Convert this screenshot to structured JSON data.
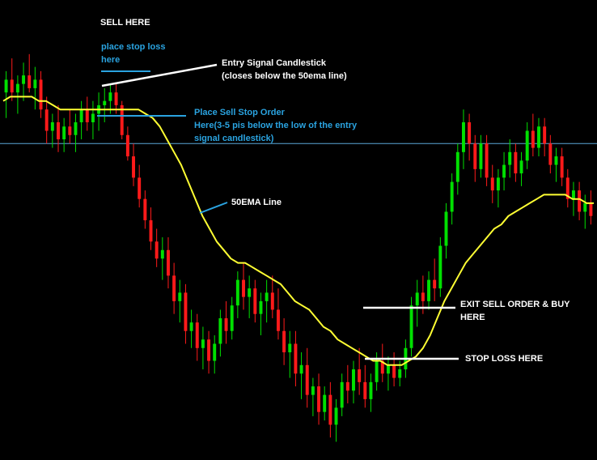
{
  "chart_data": {
    "type": "candlestick",
    "title": "",
    "colors": {
      "background": "#000000",
      "bull": "#00e000",
      "bear": "#ff1a1a",
      "ema": "#ffff33",
      "level_line": "#5aa8d8",
      "white_marker": "#ffffff",
      "blue_marker": "#2aa3e0"
    },
    "ylim": [
      0,
      100
    ],
    "candles": [
      {
        "o": 84,
        "h": 89,
        "l": 78,
        "c": 87
      },
      {
        "o": 87,
        "h": 92,
        "l": 82,
        "c": 84
      },
      {
        "o": 84,
        "h": 88,
        "l": 79,
        "c": 86
      },
      {
        "o": 86,
        "h": 91,
        "l": 82,
        "c": 88
      },
      {
        "o": 88,
        "h": 93,
        "l": 84,
        "c": 85
      },
      {
        "o": 85,
        "h": 90,
        "l": 80,
        "c": 87
      },
      {
        "o": 87,
        "h": 89,
        "l": 78,
        "c": 80
      },
      {
        "o": 80,
        "h": 83,
        "l": 72,
        "c": 75
      },
      {
        "o": 75,
        "h": 79,
        "l": 71,
        "c": 77
      },
      {
        "o": 77,
        "h": 81,
        "l": 70,
        "c": 73
      },
      {
        "o": 73,
        "h": 78,
        "l": 70,
        "c": 76
      },
      {
        "o": 76,
        "h": 80,
        "l": 72,
        "c": 74
      },
      {
        "o": 74,
        "h": 79,
        "l": 70,
        "c": 77
      },
      {
        "o": 77,
        "h": 82,
        "l": 73,
        "c": 80
      },
      {
        "o": 80,
        "h": 83,
        "l": 75,
        "c": 77
      },
      {
        "o": 77,
        "h": 82,
        "l": 73,
        "c": 79
      },
      {
        "o": 79,
        "h": 84,
        "l": 75,
        "c": 81
      },
      {
        "o": 81,
        "h": 85,
        "l": 77,
        "c": 82
      },
      {
        "o": 82,
        "h": 86,
        "l": 79,
        "c": 84
      },
      {
        "o": 84,
        "h": 86,
        "l": 79,
        "c": 81
      },
      {
        "o": 81,
        "h": 82,
        "l": 73,
        "c": 74
      },
      {
        "o": 74,
        "h": 76,
        "l": 68,
        "c": 69
      },
      {
        "o": 69,
        "h": 72,
        "l": 62,
        "c": 64
      },
      {
        "o": 64,
        "h": 67,
        "l": 57,
        "c": 59
      },
      {
        "o": 59,
        "h": 61,
        "l": 52,
        "c": 54
      },
      {
        "o": 54,
        "h": 57,
        "l": 47,
        "c": 49
      },
      {
        "o": 49,
        "h": 52,
        "l": 43,
        "c": 45
      },
      {
        "o": 45,
        "h": 50,
        "l": 40,
        "c": 47
      },
      {
        "o": 47,
        "h": 50,
        "l": 38,
        "c": 41
      },
      {
        "o": 41,
        "h": 44,
        "l": 32,
        "c": 35
      },
      {
        "o": 35,
        "h": 40,
        "l": 30,
        "c": 37
      },
      {
        "o": 37,
        "h": 39,
        "l": 25,
        "c": 28
      },
      {
        "o": 28,
        "h": 33,
        "l": 24,
        "c": 30
      },
      {
        "o": 30,
        "h": 32,
        "l": 21,
        "c": 24
      },
      {
        "o": 24,
        "h": 29,
        "l": 19,
        "c": 26
      },
      {
        "o": 26,
        "h": 28,
        "l": 18,
        "c": 21
      },
      {
        "o": 21,
        "h": 27,
        "l": 18,
        "c": 25
      },
      {
        "o": 25,
        "h": 33,
        "l": 22,
        "c": 31
      },
      {
        "o": 31,
        "h": 35,
        "l": 25,
        "c": 28
      },
      {
        "o": 28,
        "h": 36,
        "l": 26,
        "c": 34
      },
      {
        "o": 34,
        "h": 42,
        "l": 31,
        "c": 40
      },
      {
        "o": 40,
        "h": 44,
        "l": 33,
        "c": 36
      },
      {
        "o": 36,
        "h": 41,
        "l": 31,
        "c": 38
      },
      {
        "o": 38,
        "h": 40,
        "l": 30,
        "c": 32
      },
      {
        "o": 32,
        "h": 37,
        "l": 27,
        "c": 35
      },
      {
        "o": 35,
        "h": 40,
        "l": 30,
        "c": 37
      },
      {
        "o": 37,
        "h": 41,
        "l": 31,
        "c": 33
      },
      {
        "o": 33,
        "h": 38,
        "l": 26,
        "c": 28
      },
      {
        "o": 28,
        "h": 31,
        "l": 20,
        "c": 23
      },
      {
        "o": 23,
        "h": 28,
        "l": 17,
        "c": 25
      },
      {
        "o": 25,
        "h": 28,
        "l": 15,
        "c": 18
      },
      {
        "o": 18,
        "h": 23,
        "l": 12,
        "c": 20
      },
      {
        "o": 20,
        "h": 24,
        "l": 10,
        "c": 13
      },
      {
        "o": 13,
        "h": 17,
        "l": 8,
        "c": 15
      },
      {
        "o": 15,
        "h": 18,
        "l": 6,
        "c": 9
      },
      {
        "o": 9,
        "h": 15,
        "l": 7,
        "c": 13
      },
      {
        "o": 13,
        "h": 16,
        "l": 3,
        "c": 6
      },
      {
        "o": 6,
        "h": 12,
        "l": 2,
        "c": 10
      },
      {
        "o": 10,
        "h": 18,
        "l": 8,
        "c": 16
      },
      {
        "o": 16,
        "h": 20,
        "l": 11,
        "c": 14
      },
      {
        "o": 14,
        "h": 21,
        "l": 11,
        "c": 19
      },
      {
        "o": 19,
        "h": 24,
        "l": 13,
        "c": 16
      },
      {
        "o": 16,
        "h": 20,
        "l": 10,
        "c": 12
      },
      {
        "o": 12,
        "h": 18,
        "l": 9,
        "c": 16
      },
      {
        "o": 16,
        "h": 23,
        "l": 14,
        "c": 21
      },
      {
        "o": 21,
        "h": 25,
        "l": 16,
        "c": 18
      },
      {
        "o": 18,
        "h": 22,
        "l": 14,
        "c": 20
      },
      {
        "o": 20,
        "h": 23,
        "l": 15,
        "c": 17
      },
      {
        "o": 17,
        "h": 21,
        "l": 15,
        "c": 19
      },
      {
        "o": 19,
        "h": 26,
        "l": 17,
        "c": 24
      },
      {
        "o": 24,
        "h": 36,
        "l": 22,
        "c": 34
      },
      {
        "o": 34,
        "h": 40,
        "l": 29,
        "c": 37
      },
      {
        "o": 37,
        "h": 41,
        "l": 32,
        "c": 35
      },
      {
        "o": 35,
        "h": 42,
        "l": 33,
        "c": 40
      },
      {
        "o": 40,
        "h": 45,
        "l": 35,
        "c": 38
      },
      {
        "o": 38,
        "h": 50,
        "l": 36,
        "c": 48
      },
      {
        "o": 48,
        "h": 58,
        "l": 45,
        "c": 56
      },
      {
        "o": 56,
        "h": 65,
        "l": 53,
        "c": 63
      },
      {
        "o": 63,
        "h": 72,
        "l": 60,
        "c": 70
      },
      {
        "o": 70,
        "h": 80,
        "l": 66,
        "c": 77
      },
      {
        "o": 77,
        "h": 79,
        "l": 68,
        "c": 72
      },
      {
        "o": 72,
        "h": 74,
        "l": 63,
        "c": 66
      },
      {
        "o": 66,
        "h": 74,
        "l": 64,
        "c": 72
      },
      {
        "o": 72,
        "h": 74,
        "l": 62,
        "c": 64
      },
      {
        "o": 64,
        "h": 67,
        "l": 58,
        "c": 61
      },
      {
        "o": 61,
        "h": 66,
        "l": 57,
        "c": 64
      },
      {
        "o": 64,
        "h": 70,
        "l": 61,
        "c": 67
      },
      {
        "o": 67,
        "h": 73,
        "l": 64,
        "c": 70
      },
      {
        "o": 70,
        "h": 72,
        "l": 63,
        "c": 65
      },
      {
        "o": 65,
        "h": 70,
        "l": 62,
        "c": 68
      },
      {
        "o": 68,
        "h": 77,
        "l": 66,
        "c": 75
      },
      {
        "o": 75,
        "h": 79,
        "l": 69,
        "c": 71
      },
      {
        "o": 71,
        "h": 78,
        "l": 69,
        "c": 76
      },
      {
        "o": 76,
        "h": 78,
        "l": 69,
        "c": 72
      },
      {
        "o": 72,
        "h": 74,
        "l": 65,
        "c": 67
      },
      {
        "o": 67,
        "h": 71,
        "l": 63,
        "c": 69
      },
      {
        "o": 69,
        "h": 71,
        "l": 62,
        "c": 64
      },
      {
        "o": 64,
        "h": 66,
        "l": 57,
        "c": 59
      },
      {
        "o": 59,
        "h": 63,
        "l": 55,
        "c": 61
      },
      {
        "o": 61,
        "h": 63,
        "l": 54,
        "c": 56
      },
      {
        "o": 56,
        "h": 60,
        "l": 52,
        "c": 58
      },
      {
        "o": 58,
        "h": 61,
        "l": 53,
        "c": 55
      }
    ],
    "ema": [
      82,
      83,
      83,
      83,
      83,
      82,
      82,
      81,
      80,
      80,
      80,
      80,
      80,
      80,
      80,
      80,
      80,
      80,
      80,
      80,
      79,
      78,
      76,
      73,
      70,
      67,
      63,
      59,
      55,
      52,
      49,
      47,
      45,
      44,
      44,
      43,
      42,
      41,
      40,
      39,
      37,
      35,
      34,
      33,
      31,
      29,
      28,
      26,
      25,
      24,
      23,
      22,
      21,
      21,
      20,
      20,
      20,
      21,
      22,
      24,
      27,
      31,
      35,
      38,
      41,
      44,
      46,
      48,
      50,
      52,
      53,
      55,
      56,
      57,
      58,
      59,
      60,
      60,
      60,
      60,
      59,
      59,
      58,
      58
    ],
    "level_line": 72
  },
  "annotations": {
    "sell_here": "SELL HERE",
    "stop_loss_top": "place stop loss\nhere",
    "entry_signal": "Entry Signal Candlestick\n(closes below the 50ema line)",
    "sell_stop_order": "Place Sell Stop Order\nHere(3-5 pis below the low of the entry\nsignal candlestick)",
    "ema_line": "50EMA Line",
    "exit_order": "EXIT SELL ORDER & BUY\nHERE",
    "stop_loss_bottom": "STOP LOSS HERE"
  }
}
